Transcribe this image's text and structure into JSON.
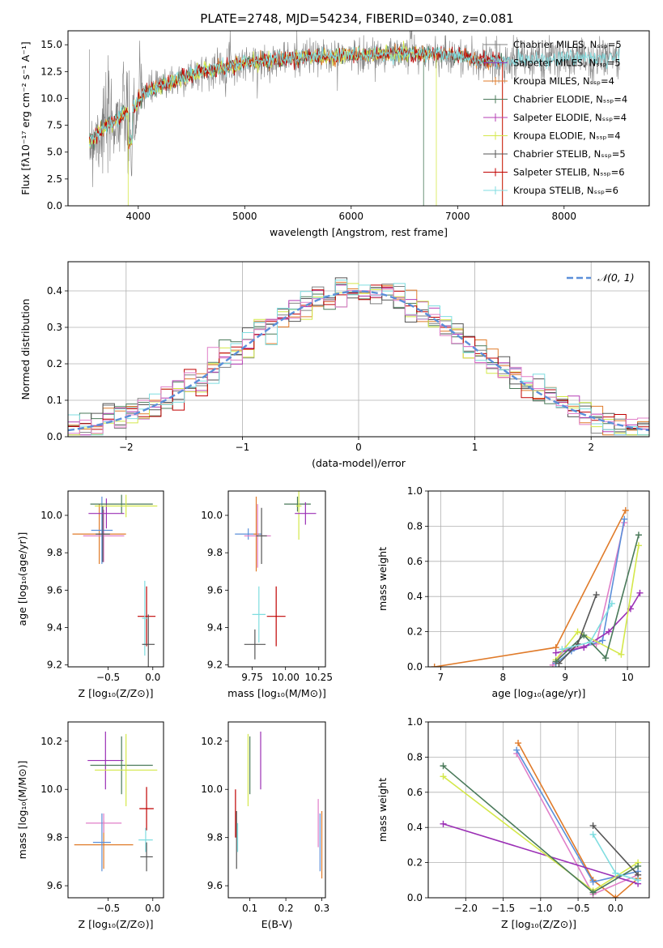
{
  "title": "PLATE=2748, MJD=54234, FIBERID=0340, z=0.081",
  "colors": {
    "chabrier_miles": "#808080",
    "salpeter_miles": "#8b3fbf",
    "kroupa_miles": "#e07b2a",
    "chabrier_elodie": "#4a7a5a",
    "salpeter_elodie": "#b53fb5",
    "kroupa_elodie": "#d4e84a",
    "chabrier_stelib": "#555555",
    "salpeter_stelib": "#c00000",
    "kroupa_stelib": "#7fdde0",
    "normal": "#5b8fd9",
    "pink": "#e07fc8",
    "blue": "#5b8fd9",
    "purple": "#9b2fb5",
    "green": "#6fc23a"
  },
  "chart_data": [
    {
      "id": "spectrum",
      "type": "line",
      "xlabel": "wavelength [Angstrom, rest frame]",
      "ylabel": "Flux [fλ10⁻¹⁷ erg cm⁻² s⁻¹ A⁻¹]",
      "xlim": [
        3340,
        8800
      ],
      "ylim": [
        0,
        16.3
      ],
      "xticks": [
        "4000",
        "5000",
        "6000",
        "7000",
        "8000"
      ],
      "yticks": [
        "0.0",
        "2.5",
        "5.0",
        "7.5",
        "10.0",
        "12.5",
        "15.0"
      ],
      "legend_position": "right",
      "legend": [
        "Chabrier MILES, N_SSP=5",
        "Salpeter MILES, N_SSP=5",
        "Kroupa MILES, N_SSP=4",
        "Chabrier ELODIE, N_SSP=4",
        "Salpeter ELODIE, N_SSP=4",
        "Kroupa ELODIE, N_SSP=4",
        "Chabrier STELIB, N_SSP=5",
        "Salpeter STELIB, N_SSP=6",
        "Kroupa STELIB, N_SSP=6"
      ],
      "continuum_x": [
        3550,
        3700,
        3850,
        3950,
        4050,
        4300,
        4600,
        5000,
        5500,
        6000,
        6500,
        7000,
        7200,
        7400,
        8000,
        8500
      ],
      "continuum_y": [
        6.0,
        7.5,
        8.5,
        9.0,
        10.5,
        11.5,
        12.5,
        13.3,
        13.8,
        14.0,
        14.2,
        14.0,
        13.5,
        13.5,
        13.7,
        13.8
      ]
    },
    {
      "id": "residuals",
      "type": "histogram",
      "xlabel": "(data-model)/error",
      "ylabel": "Normed distribution",
      "xlim": [
        -2.5,
        2.5
      ],
      "ylim": [
        0,
        0.48
      ],
      "xticks": [
        "−2",
        "−1",
        "0",
        "1",
        "2"
      ],
      "yticks": [
        "0.0",
        "0.1",
        "0.2",
        "0.3",
        "0.4"
      ],
      "legend_position": "top-right",
      "legend": [
        "𝒩(0, 1)"
      ],
      "grid": true
    },
    {
      "id": "age_vs_z",
      "type": "scatter",
      "xlabel": "Z [log₁₀(Z/Z⊙)]",
      "ylabel": "age  [log₁₀(age/yr)]",
      "xlim": [
        -0.95,
        0.12
      ],
      "ylim": [
        9.19,
        10.13
      ],
      "xticks": [
        "−0.5",
        "0.0"
      ],
      "yticks": [
        "9.2",
        "9.4",
        "9.6",
        "9.8",
        "10.0"
      ],
      "points": [
        {
          "x": -0.6,
          "y": 9.9,
          "xerr": 0.3,
          "yerr": 0.16,
          "c": "kroupa_miles"
        },
        {
          "x": -0.55,
          "y": 9.89,
          "xerr": 0.23,
          "yerr": 0.14,
          "c": "pink"
        },
        {
          "x": -0.57,
          "y": 9.92,
          "xerr": 0.12,
          "yerr": 0.18,
          "c": "blue"
        },
        {
          "x": -0.56,
          "y": 9.9,
          "xerr": 0.08,
          "yerr": 0.15,
          "c": "chabrier_stelib"
        },
        {
          "x": -0.52,
          "y": 10.01,
          "xerr": 0.2,
          "yerr": 0.08,
          "c": "purple"
        },
        {
          "x": -0.35,
          "y": 10.06,
          "xerr": 0.35,
          "yerr": 0.05,
          "c": "chabrier_elodie"
        },
        {
          "x": -0.3,
          "y": 10.05,
          "xerr": 0.35,
          "yerr": 0.06,
          "c": "kroupa_elodie"
        },
        {
          "x": -0.07,
          "y": 9.46,
          "xerr": 0.1,
          "yerr": 0.16,
          "c": "salpeter_stelib"
        },
        {
          "x": -0.09,
          "y": 9.45,
          "xerr": 0.03,
          "yerr": 0.2,
          "c": "kroupa_stelib"
        },
        {
          "x": -0.05,
          "y": 9.31,
          "xerr": 0.07,
          "yerr": 0.16,
          "c": "chabrier_stelib"
        }
      ]
    },
    {
      "id": "age_vs_mass",
      "type": "scatter",
      "xlabel": "mass [log₁₀(M/M⊙)]",
      "ylabel": "",
      "xlim": [
        9.57,
        10.3
      ],
      "ylim": [
        9.19,
        10.13
      ],
      "xticks": [
        "9.75",
        "10.00",
        "10.25"
      ],
      "yticks": [
        "9.2",
        "9.4",
        "9.6",
        "9.8",
        "10.0"
      ],
      "points": [
        {
          "x": 9.72,
          "y": 9.9,
          "xerr": 0.1,
          "yerr": 0.03,
          "c": "blue"
        },
        {
          "x": 9.78,
          "y": 9.9,
          "xerr": 0.02,
          "yerr": 0.2,
          "c": "kroupa_miles"
        },
        {
          "x": 9.79,
          "y": 9.89,
          "xerr": 0.1,
          "yerr": 0.17,
          "c": "pink"
        },
        {
          "x": 9.82,
          "y": 9.89,
          "xerr": 0.04,
          "yerr": 0.15,
          "c": "chabrier_stelib"
        },
        {
          "x": 10.09,
          "y": 10.06,
          "xerr": 0.1,
          "yerr": 0.04,
          "c": "chabrier_elodie"
        },
        {
          "x": 10.1,
          "y": 10.05,
          "xerr": 0.02,
          "yerr": 0.18,
          "c": "kroupa_elodie"
        },
        {
          "x": 10.15,
          "y": 10.01,
          "xerr": 0.08,
          "yerr": 0.06,
          "c": "purple"
        },
        {
          "x": 9.8,
          "y": 9.47,
          "xerr": 0.05,
          "yerr": 0.15,
          "c": "kroupa_stelib"
        },
        {
          "x": 9.93,
          "y": 9.46,
          "xerr": 0.07,
          "yerr": 0.16,
          "c": "salpeter_stelib"
        },
        {
          "x": 9.77,
          "y": 9.31,
          "xerr": 0.08,
          "yerr": 0.08,
          "c": "chabrier_stelib"
        }
      ]
    },
    {
      "id": "massweight_vs_age",
      "type": "line",
      "xlabel": "age  [log₁₀(age/yr)]",
      "ylabel": "mass weight",
      "xlim": [
        6.8,
        10.35
      ],
      "ylim": [
        0,
        1.0
      ],
      "xticks": [
        "7",
        "8",
        "9",
        "10"
      ],
      "yticks": [
        "0.0",
        "0.2",
        "0.4",
        "0.6",
        "0.8",
        "1.0"
      ],
      "grid": true,
      "series": [
        {
          "c": "kroupa_miles",
          "x": [
            6.9,
            8.85,
            9.97
          ],
          "y": [
            0.0,
            0.11,
            0.89
          ]
        },
        {
          "c": "pink",
          "x": [
            8.8,
            9.0,
            9.5,
            9.95
          ],
          "y": [
            0.01,
            0.1,
            0.13,
            0.82
          ]
        },
        {
          "c": "blue",
          "x": [
            8.85,
            9.1,
            9.6,
            9.95
          ],
          "y": [
            0.02,
            0.09,
            0.15,
            0.84
          ]
        },
        {
          "c": "purple",
          "x": [
            8.85,
            9.3,
            9.7,
            10.05,
            10.2
          ],
          "y": [
            0.08,
            0.11,
            0.2,
            0.33,
            0.42
          ]
        },
        {
          "c": "kroupa_elodie",
          "x": [
            8.85,
            9.2,
            9.9,
            10.18
          ],
          "y": [
            0.04,
            0.2,
            0.07,
            0.69
          ]
        },
        {
          "c": "chabrier_elodie",
          "x": [
            8.85,
            9.3,
            9.65,
            10.18
          ],
          "y": [
            0.03,
            0.18,
            0.05,
            0.75
          ]
        },
        {
          "c": "chabrier_stelib",
          "x": [
            8.9,
            9.2,
            9.5
          ],
          "y": [
            0.02,
            0.13,
            0.41
          ]
        },
        {
          "c": "kroupa_stelib",
          "x": [
            8.95,
            9.4,
            9.75
          ],
          "y": [
            0.1,
            0.14,
            0.36
          ]
        }
      ]
    },
    {
      "id": "mass_vs_z",
      "type": "scatter",
      "xlabel": "Z [log₁₀(Z/Z⊙)]",
      "ylabel": "mass [log₁₀(M/M⊙)]",
      "xlim": [
        -0.95,
        0.12
      ],
      "ylim": [
        9.55,
        10.28
      ],
      "xticks": [
        "−0.5",
        "0.0"
      ],
      "yticks": [
        "9.6",
        "9.8",
        "10.0",
        "10.2"
      ],
      "points": [
        {
          "x": -0.55,
          "y": 9.77,
          "xerr": 0.33,
          "yerr": 0.1,
          "c": "kroupa_miles"
        },
        {
          "x": -0.55,
          "y": 9.86,
          "xerr": 0.2,
          "yerr": 0.04,
          "c": "pink"
        },
        {
          "x": -0.57,
          "y": 9.78,
          "xerr": 0.1,
          "yerr": 0.12,
          "c": "blue"
        },
        {
          "x": -0.53,
          "y": 10.12,
          "xerr": 0.2,
          "yerr": 0.12,
          "c": "purple"
        },
        {
          "x": -0.35,
          "y": 10.1,
          "xerr": 0.35,
          "yerr": 0.12,
          "c": "chabrier_elodie"
        },
        {
          "x": -0.3,
          "y": 10.08,
          "xerr": 0.35,
          "yerr": 0.15,
          "c": "kroupa_elodie"
        },
        {
          "x": -0.07,
          "y": 9.92,
          "xerr": 0.08,
          "yerr": 0.09,
          "c": "salpeter_stelib"
        },
        {
          "x": -0.08,
          "y": 9.79,
          "xerr": 0.08,
          "yerr": 0.05,
          "c": "kroupa_stelib"
        },
        {
          "x": -0.07,
          "y": 9.72,
          "xerr": 0.07,
          "yerr": 0.06,
          "c": "chabrier_stelib"
        }
      ]
    },
    {
      "id": "mass_vs_ebv",
      "type": "scatter",
      "xlabel": "E(B-V)",
      "ylabel": "",
      "xlim": [
        0.04,
        0.31
      ],
      "ylim": [
        9.55,
        10.28
      ],
      "xticks": [
        "0.1",
        "0.2",
        "0.3"
      ],
      "yticks": [
        "9.6",
        "9.8",
        "10.0",
        "10.2"
      ],
      "points": [
        {
          "x": 0.06,
          "y": 9.9,
          "xerr": 0,
          "yerr": 0.1,
          "c": "salpeter_stelib"
        },
        {
          "x": 0.063,
          "y": 9.79,
          "xerr": 0,
          "yerr": 0.12,
          "c": "chabrier_stelib"
        },
        {
          "x": 0.066,
          "y": 9.8,
          "xerr": 0,
          "yerr": 0.06,
          "c": "kroupa_stelib"
        },
        {
          "x": 0.095,
          "y": 10.08,
          "xerr": 0,
          "yerr": 0.15,
          "c": "kroupa_elodie"
        },
        {
          "x": 0.1,
          "y": 10.1,
          "xerr": 0,
          "yerr": 0.12,
          "c": "chabrier_elodie"
        },
        {
          "x": 0.13,
          "y": 10.12,
          "xerr": 0,
          "yerr": 0.12,
          "c": "purple"
        },
        {
          "x": 0.29,
          "y": 9.86,
          "xerr": 0,
          "yerr": 0.1,
          "c": "pink"
        },
        {
          "x": 0.295,
          "y": 9.78,
          "xerr": 0,
          "yerr": 0.12,
          "c": "blue"
        },
        {
          "x": 0.3,
          "y": 9.77,
          "xerr": 0,
          "yerr": 0.14,
          "c": "kroupa_miles"
        }
      ]
    },
    {
      "id": "massweight_vs_z",
      "type": "line",
      "xlabel": "Z [log₁₀(Z/Z⊙)]",
      "ylabel": "mass weight",
      "xlim": [
        -2.5,
        0.45
      ],
      "ylim": [
        0,
        1.0
      ],
      "xticks": [
        "−2.0",
        "−1.5",
        "−1.0",
        "−0.5",
        "0.0"
      ],
      "yticks": [
        "0.0",
        "0.2",
        "0.4",
        "0.6",
        "0.8",
        "1.0"
      ],
      "grid": true,
      "series": [
        {
          "c": "kroupa_miles",
          "x": [
            -1.3,
            -0.3,
            0.0,
            0.3
          ],
          "y": [
            0.88,
            0.1,
            0.0,
            0.11
          ]
        },
        {
          "c": "pink",
          "x": [
            -1.32,
            -0.3,
            0.3
          ],
          "y": [
            0.82,
            0.02,
            0.13
          ]
        },
        {
          "c": "blue",
          "x": [
            -1.32,
            -0.3,
            0.3
          ],
          "y": [
            0.84,
            0.09,
            0.15
          ]
        },
        {
          "c": "purple",
          "x": [
            -2.3,
            0.3
          ],
          "y": [
            0.42,
            0.08
          ]
        },
        {
          "c": "kroupa_elodie",
          "x": [
            -2.3,
            -0.3,
            0.3
          ],
          "y": [
            0.69,
            0.04,
            0.2
          ]
        },
        {
          "c": "chabrier_elodie",
          "x": [
            -2.3,
            -0.3,
            0.3
          ],
          "y": [
            0.75,
            0.03,
            0.18
          ]
        },
        {
          "c": "chabrier_stelib",
          "x": [
            -0.3,
            0.3
          ],
          "y": [
            0.41,
            0.13
          ]
        },
        {
          "c": "kroupa_stelib",
          "x": [
            -0.3,
            0.0,
            0.3
          ],
          "y": [
            0.36,
            0.14,
            0.1
          ]
        }
      ]
    }
  ]
}
